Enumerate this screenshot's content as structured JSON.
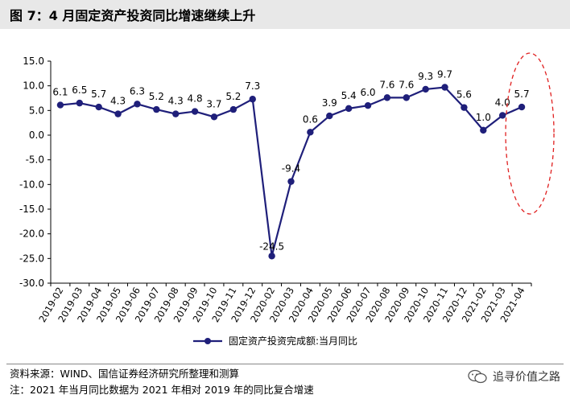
{
  "title": "图 7：4 月固定资产投资同比增速继续上升",
  "source": "资料来源：WIND、国信证券经济研究所整理和测算",
  "note": "注：2021 年当月同比数据为 2021 年相对 2019 年的同比复合增速",
  "watermark": "追寻价值之路",
  "chart_data": {
    "type": "line",
    "categories": [
      "2019-02",
      "2019-03",
      "2019-04",
      "2019-05",
      "2019-06",
      "2019-07",
      "2019-08",
      "2019-09",
      "2019-10",
      "2019-11",
      "2019-12",
      "2020-02",
      "2020-03",
      "2020-04",
      "2020-05",
      "2020-06",
      "2020-07",
      "2020-08",
      "2020-09",
      "2020-10",
      "2020-11",
      "2020-12",
      "2021-02",
      "2021-03",
      "2021-04"
    ],
    "series": [
      {
        "name": "固定资产投资完成额:当月同比",
        "values": [
          6.1,
          6.5,
          5.7,
          4.3,
          6.3,
          5.2,
          4.3,
          4.8,
          3.7,
          5.2,
          7.3,
          -24.5,
          -9.4,
          0.6,
          3.9,
          5.4,
          6.0,
          7.6,
          7.6,
          9.3,
          9.7,
          5.6,
          1.0,
          4.0,
          5.7
        ],
        "labels": [
          "6.1",
          "6.5",
          "5.7",
          "4.3",
          "6.3",
          "5.2",
          "4.3",
          "4.8",
          "3.7",
          "5.2",
          "7.3",
          "-24.5",
          "-9.4",
          "0.6",
          "3.9",
          "5.4",
          "6.0",
          "7.6",
          "7.6",
          "9.3",
          "9.7",
          "5.6",
          "1.0",
          "4.0",
          "5.7"
        ],
        "color": "#1f1f7a"
      }
    ],
    "yticks": [
      "15.0",
      "10.0",
      "5.0",
      "0.0",
      "-5.0",
      "-10.0",
      "-15.0",
      "-20.0",
      "-25.0",
      "-30.0"
    ],
    "ylim": [
      -30,
      15
    ],
    "grid": false,
    "legend_position": "bottom-center",
    "highlight_color": "#e02020"
  }
}
